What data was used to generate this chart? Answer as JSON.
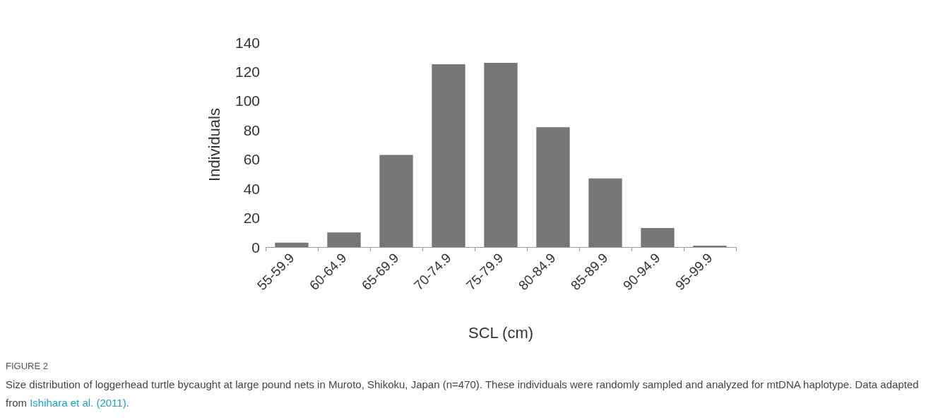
{
  "chart_data": {
    "type": "bar",
    "xlabel": "SCL (cm)",
    "ylabel": "Individuals",
    "categories": [
      "55-59.9",
      "60-64.9",
      "65-69.9",
      "70-74.9",
      "75-79.9",
      "80-84.9",
      "85-89.9",
      "90-94.9",
      "95-99.9"
    ],
    "values": [
      3,
      10,
      63,
      125,
      126,
      82,
      47,
      13,
      1
    ],
    "color": "#767676",
    "ylim": [
      0,
      140
    ],
    "yticks": [
      0,
      20,
      40,
      60,
      80,
      100,
      120,
      140
    ],
    "annotations": [
      "FIGURE 2",
      "Size distribution of loggerhead turtle bycaught at large pound nets in Muroto, Shikoku, Japan (n=470). These individuals were randomly sampled and analyzed for mtDNA haplotype. Data adapted from",
      "Ishihara et al. (2011)."
    ]
  }
}
